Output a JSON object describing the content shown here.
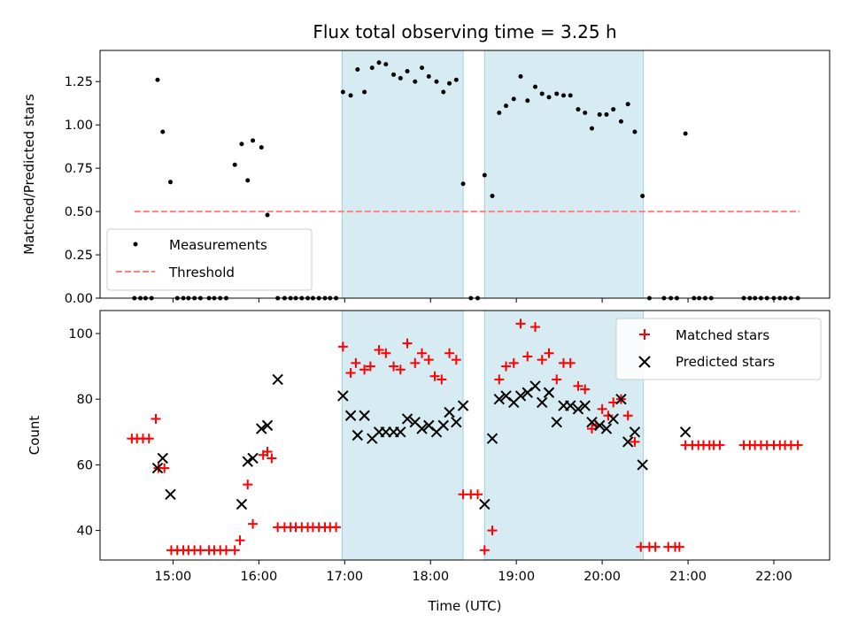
{
  "chart_data": [
    {
      "type": "scatter",
      "title": "Flux total observing time = 3.25 h",
      "xlabel": "",
      "ylabel": "Matched/Predicted stars",
      "xlim": [
        14.15,
        22.65
      ],
      "ylim": [
        0.0,
        1.43
      ],
      "yticks": [
        0.0,
        0.25,
        0.5,
        0.75,
        1.0,
        1.25
      ],
      "ytick_labels": [
        "0.00",
        "0.25",
        "0.50",
        "0.75",
        "1.00",
        "1.25"
      ],
      "shaded_intervals": [
        [
          16.97,
          18.38
        ],
        [
          18.63,
          20.48
        ]
      ],
      "legend": {
        "position": "lower-left",
        "entries": [
          "Measurements",
          "Threshold"
        ]
      },
      "threshold": {
        "name": "Threshold",
        "x": [
          14.55,
          22.3
        ],
        "y": 0.5,
        "color": "#ff7f7f"
      },
      "series": [
        {
          "name": "Measurements",
          "color": "#000000",
          "x": [
            14.55,
            14.62,
            14.68,
            14.75,
            14.82,
            14.88,
            14.97,
            15.05,
            15.12,
            15.18,
            15.25,
            15.32,
            15.42,
            15.48,
            15.55,
            15.62,
            15.72,
            15.8,
            15.87,
            15.93,
            16.03,
            16.1,
            16.22,
            16.3,
            16.37,
            16.43,
            16.5,
            16.57,
            16.63,
            16.7,
            16.77,
            16.83,
            16.9,
            16.98,
            17.07,
            17.15,
            17.23,
            17.32,
            17.4,
            17.48,
            17.57,
            17.65,
            17.73,
            17.82,
            17.9,
            17.98,
            18.07,
            18.15,
            18.22,
            18.3,
            18.38,
            18.47,
            18.55,
            18.63,
            18.72,
            18.8,
            18.88,
            18.97,
            19.05,
            19.13,
            19.22,
            19.3,
            19.38,
            19.47,
            19.55,
            19.63,
            19.72,
            19.8,
            19.88,
            19.97,
            20.05,
            20.13,
            20.22,
            20.3,
            20.38,
            20.47,
            20.55,
            20.72,
            20.8,
            20.87,
            20.97,
            21.07,
            21.13,
            21.2,
            21.27,
            21.65,
            21.72,
            21.78,
            21.85,
            21.92,
            22.0,
            22.07,
            22.13,
            22.2,
            22.28
          ],
          "y": [
            0,
            0,
            0,
            0,
            1.26,
            0.96,
            0.67,
            0,
            0,
            0,
            0,
            0,
            0,
            0,
            0,
            0,
            0.77,
            0.89,
            0.68,
            0.91,
            0.87,
            0.48,
            0,
            0,
            0,
            0,
            0,
            0,
            0,
            0,
            0,
            0,
            0,
            1.19,
            1.17,
            1.32,
            1.19,
            1.33,
            1.36,
            1.35,
            1.29,
            1.27,
            1.31,
            1.25,
            1.33,
            1.28,
            1.25,
            1.19,
            1.24,
            1.26,
            0.66,
            0,
            0,
            0.71,
            0.59,
            1.07,
            1.11,
            1.15,
            1.28,
            1.14,
            1.22,
            1.18,
            1.16,
            1.18,
            1.17,
            1.17,
            1.09,
            1.07,
            0.98,
            1.06,
            1.06,
            1.09,
            1.02,
            1.12,
            0.96,
            0.59,
            0,
            0,
            0,
            0,
            0.95,
            0,
            0,
            0,
            0,
            0,
            0,
            0,
            0,
            0,
            0,
            0,
            0,
            0,
            0
          ]
        }
      ]
    },
    {
      "type": "scatter",
      "title": "",
      "xlabel": "Time (UTC)",
      "ylabel": "Count",
      "xlim": [
        14.15,
        22.65
      ],
      "ylim": [
        31,
        107
      ],
      "yticks": [
        40,
        60,
        80,
        100
      ],
      "ytick_labels": [
        "40",
        "60",
        "80",
        "100"
      ],
      "xticks": [
        15,
        16,
        17,
        18,
        19,
        20,
        21,
        22
      ],
      "xtick_labels": [
        "15:00",
        "16:00",
        "17:00",
        "18:00",
        "19:00",
        "20:00",
        "21:00",
        "22:00"
      ],
      "shaded_intervals": [
        [
          16.97,
          18.38
        ],
        [
          18.63,
          20.48
        ]
      ],
      "legend": {
        "position": "top-right",
        "entries": [
          "Matched stars",
          "Predicted stars"
        ]
      },
      "series": [
        {
          "name": "Matched stars",
          "marker": "+",
          "color": "#ff0000",
          "x": [
            14.52,
            14.58,
            14.65,
            14.72,
            14.8,
            14.83,
            14.9,
            14.98,
            15.05,
            15.12,
            15.18,
            15.25,
            15.32,
            15.42,
            15.48,
            15.55,
            15.62,
            15.72,
            15.78,
            15.87,
            15.93,
            16.05,
            16.1,
            16.15,
            16.22,
            16.3,
            16.37,
            16.43,
            16.5,
            16.57,
            16.63,
            16.7,
            16.77,
            16.83,
            16.9,
            16.98,
            17.07,
            17.13,
            17.23,
            17.3,
            17.4,
            17.48,
            17.57,
            17.65,
            17.73,
            17.82,
            17.9,
            17.98,
            18.05,
            18.13,
            18.22,
            18.3,
            18.38,
            18.47,
            18.55,
            18.63,
            18.72,
            18.8,
            18.88,
            18.97,
            19.05,
            19.13,
            19.22,
            19.3,
            19.38,
            19.47,
            19.55,
            19.63,
            19.72,
            19.8,
            19.88,
            19.93,
            20.0,
            20.07,
            20.13,
            20.22,
            20.3,
            20.38,
            20.45,
            20.55,
            20.62,
            20.77,
            20.85,
            20.9,
            20.97,
            21.05,
            21.12,
            21.18,
            21.25,
            21.3,
            21.37,
            21.65,
            21.72,
            21.78,
            21.85,
            21.92,
            22.0,
            22.07,
            22.13,
            22.2,
            22.28
          ],
          "y": [
            68,
            68,
            68,
            68,
            74,
            59,
            59,
            34,
            34,
            34,
            34,
            34,
            34,
            34,
            34,
            34,
            34,
            34,
            37,
            54,
            42,
            63,
            64,
            62,
            41,
            41,
            41,
            41,
            41,
            41,
            41,
            41,
            41,
            41,
            41,
            96,
            88,
            91,
            89,
            90,
            95,
            94,
            90,
            89,
            97,
            91,
            94,
            92,
            87,
            86,
            94,
            92,
            51,
            51,
            51,
            34,
            40,
            86,
            90,
            91,
            103,
            93,
            102,
            92,
            94,
            86,
            91,
            91,
            84,
            83,
            71,
            72,
            77,
            75,
            79,
            80,
            75,
            67,
            35,
            35,
            35,
            35,
            35,
            35,
            66,
            66,
            66,
            66,
            66,
            66,
            66,
            66,
            66,
            66,
            66,
            66,
            66,
            66,
            66,
            66,
            66
          ]
        },
        {
          "name": "Predicted stars",
          "marker": "x",
          "color": "#000000",
          "x": [
            14.82,
            14.88,
            14.97,
            15.8,
            15.87,
            15.93,
            16.03,
            16.1,
            16.22,
            16.98,
            17.07,
            17.15,
            17.23,
            17.32,
            17.4,
            17.48,
            17.57,
            17.65,
            17.73,
            17.82,
            17.9,
            17.98,
            18.07,
            18.15,
            18.22,
            18.3,
            18.38,
            18.63,
            18.72,
            18.8,
            18.88,
            18.97,
            19.05,
            19.13,
            19.22,
            19.3,
            19.38,
            19.47,
            19.55,
            19.63,
            19.72,
            19.8,
            19.88,
            19.97,
            20.05,
            20.13,
            20.22,
            20.3,
            20.38,
            20.47,
            20.97
          ],
          "y": [
            59,
            62,
            51,
            48,
            61,
            62,
            71,
            72,
            86,
            81,
            75,
            69,
            75,
            68,
            70,
            70,
            70,
            70,
            74,
            73,
            71,
            72,
            70,
            72,
            76,
            73,
            78,
            48,
            68,
            80,
            81,
            79,
            81,
            82,
            84,
            79,
            82,
            73,
            78,
            78,
            77,
            78,
            73,
            72,
            71,
            74,
            80,
            67,
            70,
            60,
            70
          ]
        }
      ]
    }
  ]
}
